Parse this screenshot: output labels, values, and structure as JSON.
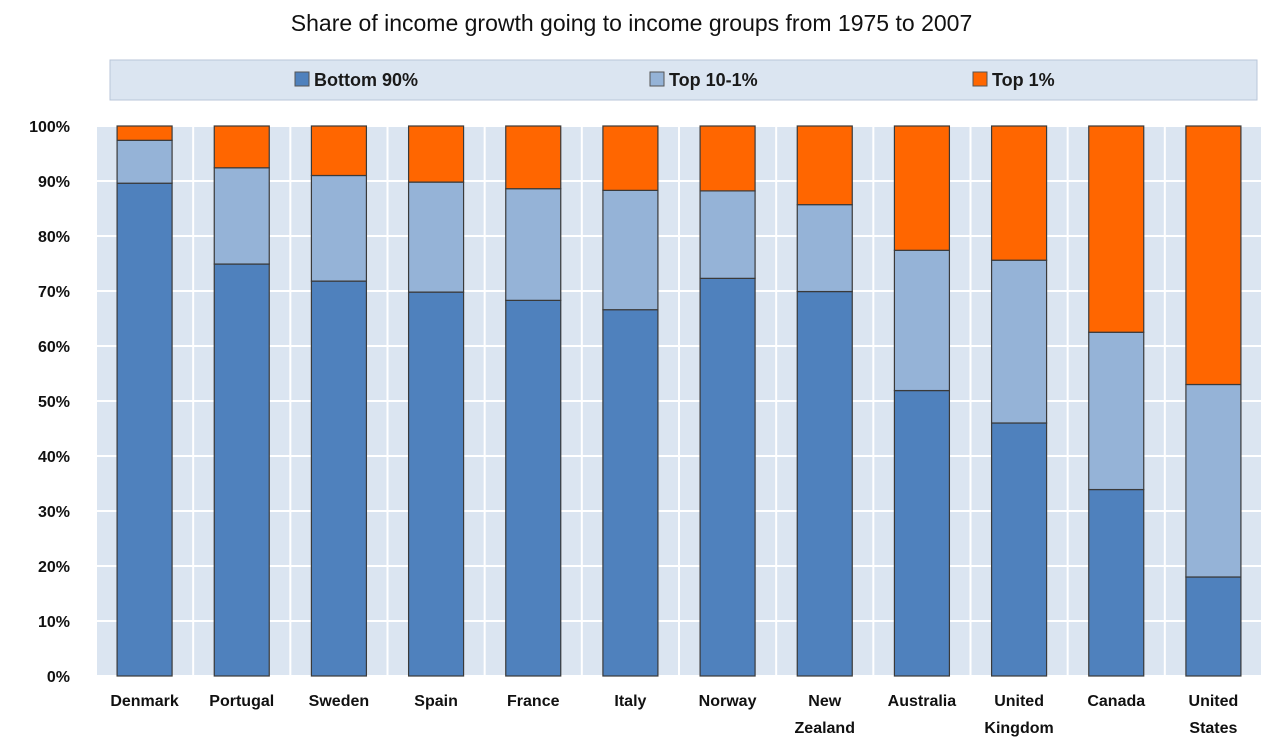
{
  "chart_data": {
    "type": "bar",
    "stacked": true,
    "title": "Share of income growth going to income groups from 1975 to 2007",
    "categories": [
      [
        "Denmark"
      ],
      [
        "Portugal"
      ],
      [
        "Sweden"
      ],
      [
        "Spain"
      ],
      [
        "France"
      ],
      [
        "Italy"
      ],
      [
        "Norway"
      ],
      [
        "New",
        "Zealand"
      ],
      [
        "Australia"
      ],
      [
        "United",
        "Kingdom"
      ],
      [
        "Canada"
      ],
      [
        "United",
        "States"
      ]
    ],
    "series": [
      {
        "name": "Bottom 90%",
        "color": "#4f81bd",
        "values": [
          89.6,
          74.9,
          71.8,
          69.8,
          68.3,
          66.6,
          72.3,
          69.9,
          51.9,
          46.0,
          33.9,
          18.0
        ]
      },
      {
        "name": "Top 10-1%",
        "color": "#95b3d7",
        "values": [
          7.8,
          17.5,
          19.2,
          20.0,
          20.3,
          21.7,
          15.9,
          15.8,
          25.5,
          29.6,
          28.6,
          35.0
        ]
      },
      {
        "name": "Top 1%",
        "color": "#ff6600",
        "values": [
          2.6,
          7.6,
          9.0,
          10.2,
          11.4,
          11.7,
          11.8,
          14.3,
          22.6,
          24.4,
          37.5,
          47.0
        ]
      }
    ],
    "ylim": [
      0,
      100
    ],
    "yticks": [
      "0%",
      "10%",
      "20%",
      "30%",
      "40%",
      "50%",
      "60%",
      "70%",
      "80%",
      "90%",
      "100%"
    ],
    "xlabel": "",
    "ylabel": "",
    "grid": true,
    "legend_position": "top"
  }
}
